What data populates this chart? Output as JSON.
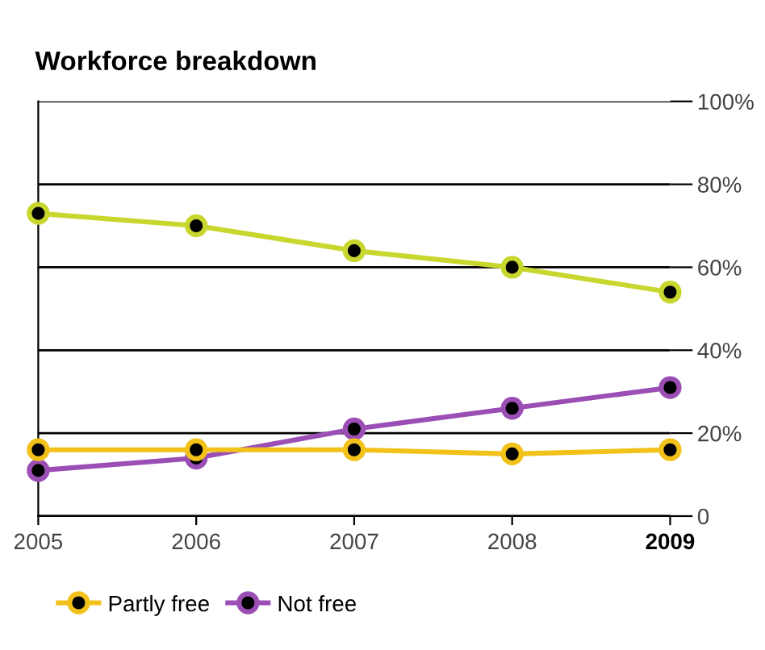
{
  "chart_data": {
    "type": "line",
    "title": "Workforce breakdown",
    "x": [
      2005,
      2006,
      2007,
      2008,
      2009
    ],
    "series": [
      {
        "color": "#c8d72e",
        "values": [
          73,
          70,
          64,
          60,
          54
        ]
      },
      {
        "name": "Partly free",
        "color": "#f2c21b",
        "values": [
          16,
          16,
          16,
          15,
          16
        ]
      },
      {
        "name": "Not free",
        "color": "#9b4fb5",
        "values": [
          11,
          14,
          21,
          26,
          31
        ]
      }
    ],
    "xlim": [
      2005,
      2009
    ],
    "xticks": [
      2005,
      2006,
      2007,
      2008,
      2009
    ],
    "ylim": [
      0,
      100
    ],
    "yticks": [
      {
        "value": 0,
        "label": "0"
      },
      {
        "value": 20,
        "label": "20%"
      },
      {
        "value": 40,
        "label": "40%"
      },
      {
        "value": 60,
        "label": "60%"
      },
      {
        "value": 80,
        "label": "80%"
      },
      {
        "value": 100,
        "label": "100%"
      }
    ],
    "grid": "y",
    "legend": "bottom",
    "marker": "circle",
    "line_style": "solid"
  }
}
